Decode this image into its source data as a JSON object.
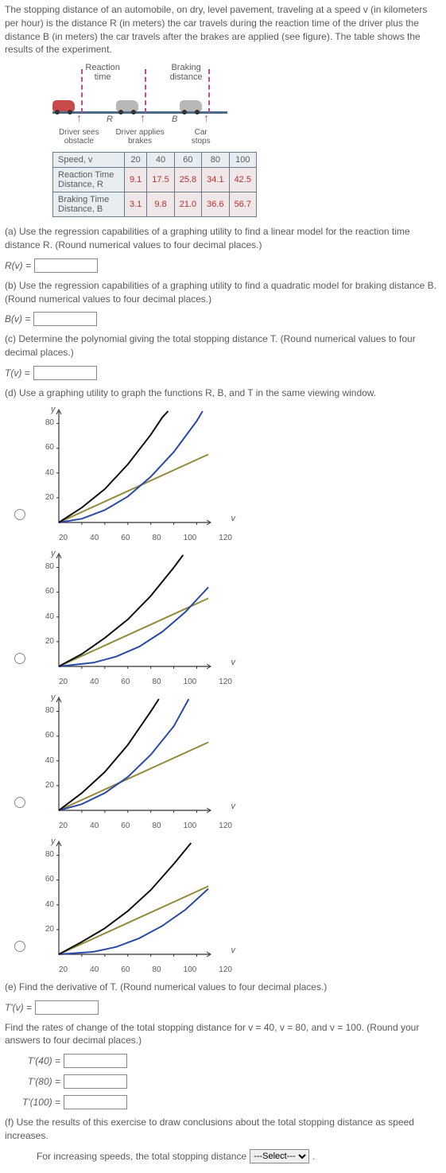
{
  "intro_text": "The stopping distance of an automobile, on dry, level pavement, traveling at a speed v (in kilometers per hour) is the distance R (in meters) the car travels during the reaction time of the driver plus the distance B (in meters) the car travels after the brakes are applied (see figure). The table shows the results of the experiment.",
  "diagram": {
    "top_left": "Reaction\ntime",
    "top_right": "Braking\ndistance",
    "R_label": "R",
    "B_label": "B",
    "cap1": "Driver sees\nobstacle",
    "cap2": "Driver applies\nbrakes",
    "cap3": "Car\nstops"
  },
  "table": {
    "row_speed": "Speed, v",
    "row_reaction": "Reaction Time\nDistance, R",
    "row_braking": "Braking Time\nDistance, B",
    "speeds": [
      "20",
      "40",
      "60",
      "80",
      "100"
    ],
    "R_vals": [
      "9.1",
      "17.5",
      "25.8",
      "34.1",
      "42.5"
    ],
    "B_vals": [
      "3.1",
      "9.8",
      "21.0",
      "36.6",
      "56.7"
    ],
    "val_color": "#b83030",
    "border_color": "#6a7a8a",
    "bg_color": "#e8edf2"
  },
  "parts": {
    "a_text": "(a) Use the regression capabilities of a graphing utility to find a linear model for the reaction time distance R. (Round numerical values to four decimal places.)",
    "a_lhs": "R(v) =",
    "b_text": "(b) Use the regression capabilities of a graphing utility to find a quadratic model for braking distance B. (Round numerical values to four decimal places.)",
    "b_lhs": "B(v) =",
    "c_text": "(c) Determine the polynomial giving the total stopping distance T. (Round numerical values to four decimal places.)",
    "c_lhs": "T(v) =",
    "d_text": "(d) Use a graphing utility to graph the functions R, B, and T in the same viewing window.",
    "e_text": "(e) Find the derivative of T. (Round numerical values to four decimal places.)",
    "e_lhs": "T'(v) =",
    "rates_text": "Find the rates of change of the total stopping distance for v = 40, v = 80, and v = 100. (Round your answers to four decimal places.)",
    "r40": "T'(40)  =",
    "r80": "T'(80)  =",
    "r100": "T'(100)  =",
    "f_text": "(f) Use the results of this exercise to draw conclusions about the total stopping distance as speed increases.",
    "f_sentence_pre": "For increasing speeds, the total stopping distance ",
    "f_select_placeholder": "---Select---",
    "f_sentence_post": "."
  },
  "graphs": {
    "y_label": "y",
    "x_label": "v",
    "xlim": [
      0,
      130
    ],
    "ylim": [
      0,
      90
    ],
    "yticks": [
      20,
      40,
      60,
      80
    ],
    "xticks": [
      20,
      40,
      60,
      80,
      100,
      120
    ],
    "axis_color": "#333333",
    "grid_tick_color": "#333333",
    "colors": {
      "R_line": "#948a3a",
      "B_line": "#2a4aa8",
      "T_line": "#111111"
    },
    "line_width": 2,
    "variants": [
      {
        "R": [
          [
            0,
            0
          ],
          [
            130,
            55
          ]
        ],
        "B": [
          [
            0,
            0
          ],
          [
            20,
            3
          ],
          [
            40,
            10
          ],
          [
            60,
            21
          ],
          [
            80,
            37
          ],
          [
            100,
            57
          ],
          [
            120,
            82
          ],
          [
            125,
            90
          ]
        ],
        "T": [
          [
            0,
            0
          ],
          [
            20,
            12
          ],
          [
            40,
            27
          ],
          [
            60,
            47
          ],
          [
            80,
            71
          ],
          [
            90,
            85
          ],
          [
            95,
            90
          ]
        ]
      },
      {
        "R": [
          [
            0,
            0
          ],
          [
            130,
            55
          ]
        ],
        "B": [
          [
            0,
            0
          ],
          [
            30,
            3
          ],
          [
            50,
            8
          ],
          [
            70,
            16
          ],
          [
            90,
            28
          ],
          [
            110,
            44
          ],
          [
            130,
            64
          ]
        ],
        "T": [
          [
            0,
            0
          ],
          [
            20,
            10
          ],
          [
            40,
            23
          ],
          [
            60,
            38
          ],
          [
            80,
            57
          ],
          [
            100,
            80
          ],
          [
            108,
            90
          ]
        ]
      },
      {
        "R": [
          [
            0,
            0
          ],
          [
            130,
            55
          ]
        ],
        "B": [
          [
            0,
            0
          ],
          [
            20,
            5
          ],
          [
            40,
            14
          ],
          [
            60,
            27
          ],
          [
            80,
            45
          ],
          [
            100,
            68
          ],
          [
            113,
            90
          ]
        ],
        "T": [
          [
            0,
            0
          ],
          [
            20,
            14
          ],
          [
            40,
            31
          ],
          [
            60,
            53
          ],
          [
            80,
            80
          ],
          [
            87,
            90
          ]
        ]
      },
      {
        "R": [
          [
            0,
            0
          ],
          [
            130,
            55
          ]
        ],
        "B": [
          [
            0,
            0
          ],
          [
            30,
            2
          ],
          [
            50,
            6
          ],
          [
            70,
            13
          ],
          [
            90,
            23
          ],
          [
            110,
            36
          ],
          [
            130,
            53
          ]
        ],
        "T": [
          [
            0,
            0
          ],
          [
            20,
            10
          ],
          [
            40,
            21
          ],
          [
            60,
            35
          ],
          [
            80,
            52
          ],
          [
            100,
            73
          ],
          [
            115,
            90
          ]
        ]
      }
    ]
  }
}
